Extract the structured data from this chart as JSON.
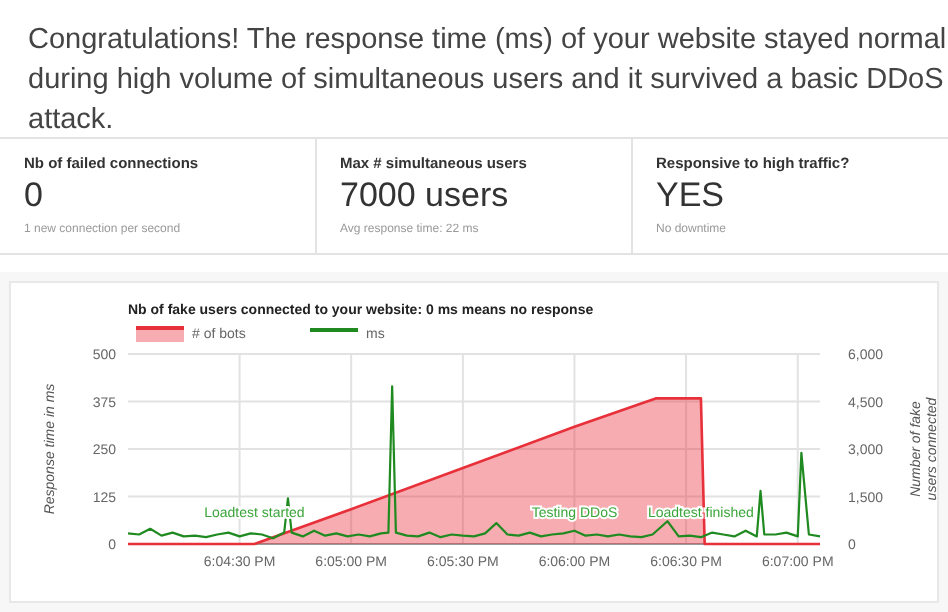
{
  "chart_data": [
    {
      "type": "other",
      "title": "Congratulations! The response time (ms) of your website stayed normal during high volume of simultaneous users and it survived a basic DDoS attack.",
      "annotations": [
        "Nb of failed connections",
        "0",
        "1 new connection per second",
        "Max # simultaneous users",
        "7000 users",
        "Avg response time: 22 ms",
        "Responsive to high traffic?",
        "YES",
        "No downtime"
      ]
    },
    {
      "type": "line",
      "title": "Nb of fake users connected to your website: 0 ms means no response",
      "ylabel": "Response time in ms",
      "y2label": "Number of fake users connected",
      "xlim": [
        18.06667,
        18.11833
      ],
      "xticks": [
        {
          "value": 18.075,
          "label": "6:04:30 PM"
        },
        {
          "value": 18.08333,
          "label": "6:05:00 PM"
        },
        {
          "value": 18.09167,
          "label": "6:05:30 PM"
        },
        {
          "value": 18.1,
          "label": "6:06:00 PM"
        },
        {
          "value": 18.10833,
          "label": "6:06:30 PM"
        },
        {
          "value": 18.11667,
          "label": "6:07:00 PM"
        }
      ],
      "ylim": [
        0,
        500
      ],
      "yticks": [
        0,
        125,
        250,
        375,
        500
      ],
      "y2lim": [
        0,
        6000
      ],
      "y2ticks": [
        {
          "value": 0,
          "label": "0"
        },
        {
          "value": 1500,
          "label": "1,500"
        },
        {
          "value": 3000,
          "label": "3,000"
        },
        {
          "value": 4500,
          "label": "4,500"
        },
        {
          "value": 6000,
          "label": "6,000"
        }
      ],
      "grid": true,
      "legend": "top left",
      "marker": "none",
      "series": [
        {
          "name": "# of bots",
          "type": "area",
          "axis": "y2",
          "color": "#e8303a",
          "x": [
            18.06667,
            18.07611,
            18.08333,
            18.09167,
            18.1,
            18.10611,
            18.10944,
            18.10972,
            18.11833
          ],
          "values": [
            0,
            0,
            1100,
            2400,
            3700,
            4600,
            4600,
            0,
            0
          ]
        },
        {
          "name": "ms",
          "type": "line",
          "color": "#1f8a1f",
          "x": [
            18.06667,
            18.0675,
            18.06833,
            18.06917,
            18.07,
            18.07083,
            18.07167,
            18.0725,
            18.07333,
            18.07417,
            18.075,
            18.07583,
            18.07667,
            18.0775,
            18.07833,
            18.07861,
            18.07889,
            18.07972,
            18.08056,
            18.08139,
            18.08222,
            18.08306,
            18.08389,
            18.08472,
            18.08556,
            18.08611,
            18.08639,
            18.08667,
            18.0875,
            18.08833,
            18.08917,
            18.09,
            18.09083,
            18.09167,
            18.0925,
            18.09333,
            18.09417,
            18.095,
            18.09583,
            18.09667,
            18.0975,
            18.09833,
            18.09917,
            18.1,
            18.10083,
            18.10167,
            18.1025,
            18.10333,
            18.10417,
            18.105,
            18.10583,
            18.10694,
            18.10778,
            18.10861,
            18.10944,
            18.11028,
            18.11111,
            18.11194,
            18.11278,
            18.11361,
            18.11389,
            18.11417,
            18.115,
            18.11583,
            18.11667,
            18.11694,
            18.1175,
            18.11833
          ],
          "values": [
            28,
            25,
            40,
            22,
            30,
            20,
            22,
            18,
            25,
            30,
            20,
            28,
            25,
            15,
            30,
            120,
            30,
            20,
            35,
            22,
            28,
            20,
            25,
            20,
            28,
            30,
            415,
            30,
            22,
            20,
            30,
            18,
            25,
            22,
            20,
            28,
            55,
            25,
            22,
            30,
            20,
            25,
            28,
            35,
            22,
            25,
            20,
            25,
            20,
            18,
            25,
            60,
            20,
            22,
            18,
            30,
            25,
            20,
            35,
            20,
            140,
            25,
            25,
            30,
            20,
            240,
            25,
            20
          ]
        }
      ],
      "annotations": [
        {
          "text": "Loadtest started",
          "x": 18.07611,
          "y": 25
        },
        {
          "text": "Testing DDoS",
          "x": 18.1,
          "y": 25
        },
        {
          "text": "Loadtest finished",
          "x": 18.10944,
          "y": 25
        }
      ]
    }
  ]
}
